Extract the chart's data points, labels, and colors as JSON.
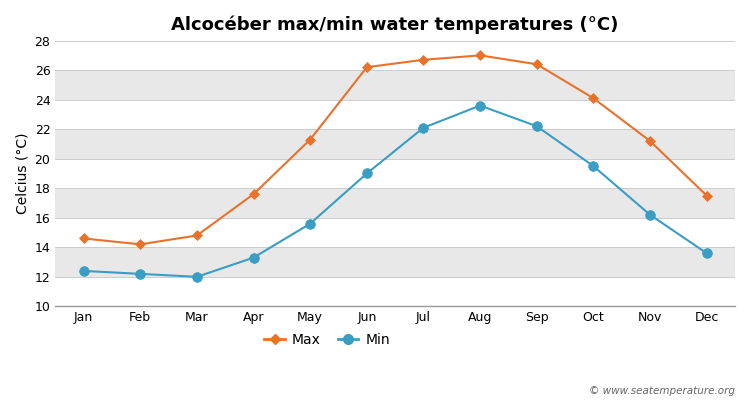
{
  "title": "Alcocéber max/min water temperatures (°C)",
  "ylabel": "Celcius (°C)",
  "months": [
    "Jan",
    "Feb",
    "Mar",
    "Apr",
    "May",
    "Jun",
    "Jul",
    "Aug",
    "Sep",
    "Oct",
    "Nov",
    "Dec"
  ],
  "max_values": [
    14.6,
    14.2,
    14.8,
    17.6,
    21.3,
    26.2,
    26.7,
    27.0,
    26.4,
    24.1,
    21.2,
    17.5
  ],
  "min_values": [
    12.4,
    12.2,
    12.0,
    13.3,
    15.6,
    19.0,
    22.1,
    23.6,
    22.2,
    19.5,
    16.2,
    13.6
  ],
  "max_color": "#E8722A",
  "min_color": "#3A9DC4",
  "fig_bg_color": "#ffffff",
  "plot_bg_color": "#f0f0f0",
  "grid_colors": [
    "#ffffff",
    "#e8e8e8"
  ],
  "ylim": [
    10,
    28
  ],
  "yticks": [
    10,
    12,
    14,
    16,
    18,
    20,
    22,
    24,
    26,
    28
  ],
  "legend_labels": [
    "Max",
    "Min"
  ],
  "watermark": "© www.seatemperature.org",
  "title_fontsize": 13,
  "label_fontsize": 10,
  "tick_fontsize": 9,
  "legend_fontsize": 10,
  "max_linewidth": 1.5,
  "min_linewidth": 1.5,
  "max_marker": "D",
  "min_marker": "o",
  "max_markersize": 5,
  "min_markersize": 7
}
